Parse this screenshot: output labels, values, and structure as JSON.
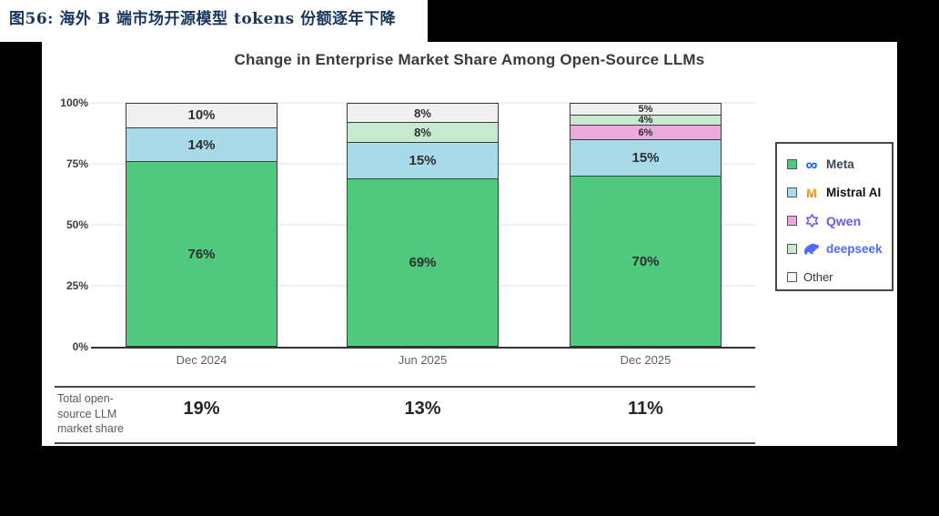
{
  "page": {
    "figure_label": "图56:  海外 B 端市场开源模型 tokens 份额逐年下降",
    "accent_color": "#17365d",
    "background_color": "#000000"
  },
  "chart_data": {
    "type": "bar",
    "stacked": true,
    "title": "Change in Enterprise Market Share Among Open-Source LLMs",
    "categories": [
      "Dec 2024",
      "Jun 2025",
      "Dec 2025"
    ],
    "series": [
      {
        "name": "Meta",
        "values": [
          76,
          69,
          70
        ],
        "color": "#4ec97d",
        "labels": [
          "76%",
          "69%",
          "70%"
        ]
      },
      {
        "name": "Mistral AI",
        "values": [
          14,
          15,
          15
        ],
        "color": "#a8dbea",
        "labels": [
          "14%",
          "15%",
          "15%"
        ]
      },
      {
        "name": "Qwen",
        "values": [
          0,
          0,
          6
        ],
        "color": "#eba9dc",
        "labels": [
          "",
          "",
          "6%"
        ]
      },
      {
        "name": "deepseek",
        "values": [
          0,
          8,
          4
        ],
        "color": "#c7e9d0",
        "labels": [
          "",
          "8%",
          "4%"
        ]
      },
      {
        "name": "Other",
        "values": [
          10,
          8,
          5
        ],
        "color": "#f0f0f0",
        "labels": [
          "10%",
          "8%",
          "5%"
        ]
      }
    ],
    "y_ticks": [
      "0%",
      "25%",
      "50%",
      "75%",
      "100%"
    ],
    "ylim": [
      0,
      100
    ],
    "grid": true,
    "legend_position": "right",
    "legend": [
      {
        "label": "Meta",
        "icon": "meta-logo",
        "swatch": "#4ec97d"
      },
      {
        "label": "Mistral AI",
        "icon": "mistral-logo",
        "swatch": "#a8dbea"
      },
      {
        "label": "Qwen",
        "icon": "qwen-logo",
        "swatch": "#eba9dc"
      },
      {
        "label": "deepseek",
        "icon": "deepseek-logo",
        "swatch": "#c7e9d0"
      },
      {
        "label": "Other",
        "icon": null,
        "swatch": "#fafafa"
      }
    ],
    "totals_row": {
      "label_lines": [
        "Total open-",
        "source LLM",
        "market share"
      ],
      "values": [
        "19%",
        "13%",
        "11%"
      ]
    }
  }
}
